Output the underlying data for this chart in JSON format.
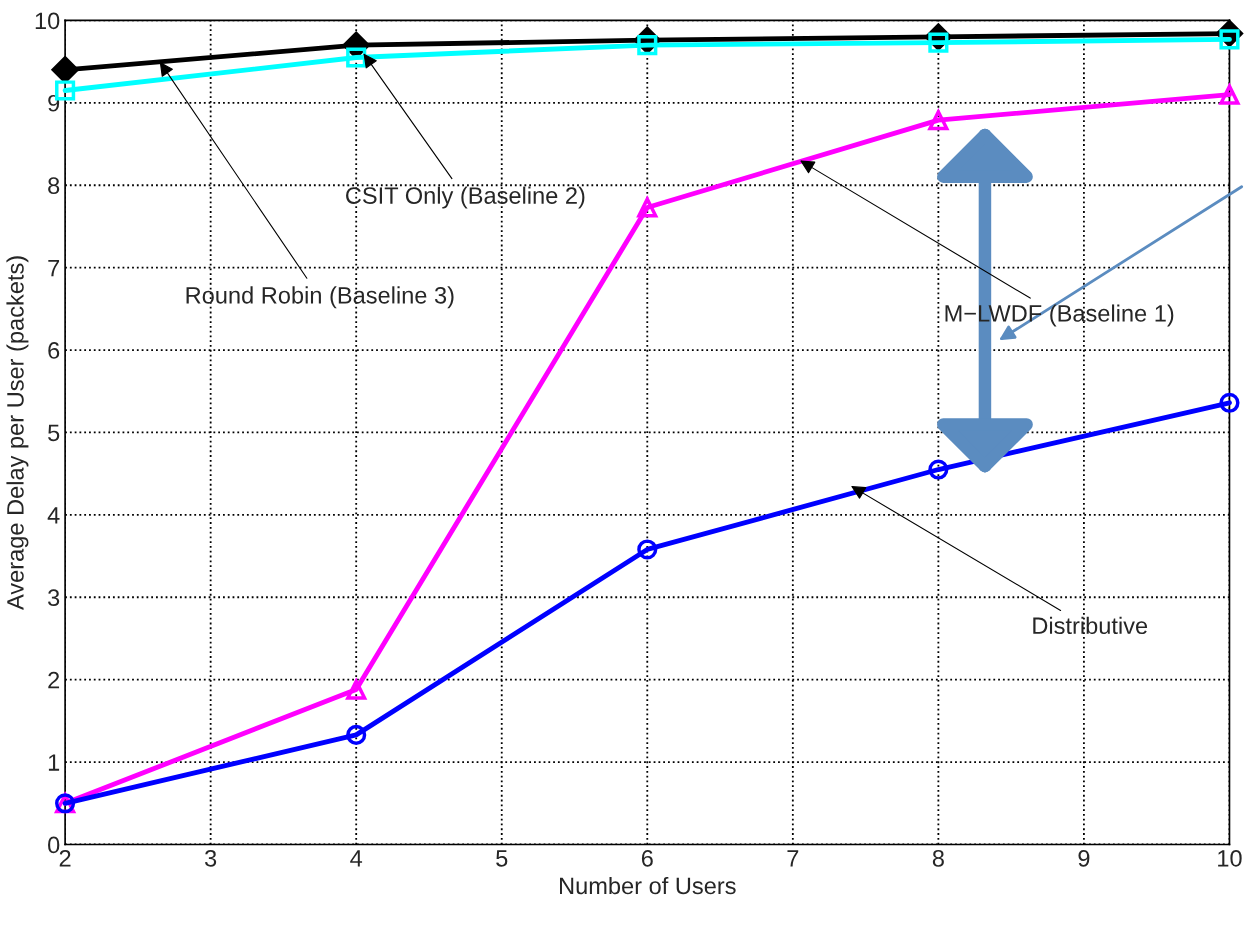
{
  "chart_data": {
    "type": "line",
    "xlabel": "Number of Users",
    "ylabel": "Average Delay per User (packets)",
    "x": [
      2,
      4,
      6,
      8,
      10
    ],
    "series": [
      {
        "color": "#000000",
        "marker": "diamond",
        "values": [
          9.4,
          9.7,
          9.76,
          9.8,
          9.84
        ]
      },
      {
        "color": "#00ffff",
        "marker": "square",
        "values": [
          9.15,
          9.55,
          9.7,
          9.73,
          9.77
        ]
      },
      {
        "color": "#ff00ff",
        "marker": "triangle",
        "values": [
          0.5,
          1.88,
          7.73,
          8.79,
          9.1
        ]
      },
      {
        "color": "#0000ff",
        "marker": "circle",
        "values": [
          0.5,
          1.33,
          3.58,
          4.55,
          5.36
        ]
      }
    ],
    "annotations": [
      {
        "text": "Round Robin (Baseline 3)",
        "x": 2.65,
        "y": 9.5
      },
      {
        "text": "CSIT Only (Baseline 2)",
        "x": 4.05,
        "y": 9.6
      },
      {
        "text": "M−LWDF (Baseline 1)",
        "x": 7.05,
        "y": 8.3
      },
      {
        "text": "Distributive",
        "x": 7.4,
        "y": 4.35
      }
    ],
    "xlim": [
      2,
      10
    ],
    "xticks": [
      2,
      3,
      4,
      5,
      6,
      7,
      8,
      9,
      10
    ],
    "ylim": [
      0,
      10
    ],
    "yticks": [
      0,
      1,
      2,
      3,
      4,
      5,
      6,
      7,
      8,
      9,
      10
    ],
    "grid": true,
    "legend": false,
    "line_style": "solid"
  }
}
